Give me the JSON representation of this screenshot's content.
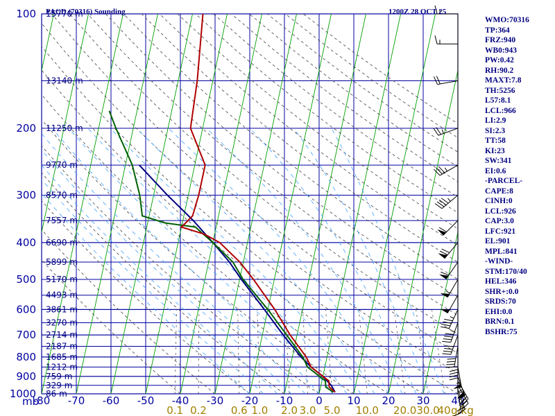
{
  "header": {
    "station": "PACD (70316) Sounding",
    "time": "1200Z 28 OCT 25"
  },
  "stats": [
    "WMO:70316",
    "TP:364",
    "FRZ:940",
    "WB0:943",
    "PW:0.42",
    "RH:90.2",
    "MAXT:7.8",
    "TH:5256",
    "L57:8.1",
    "LCL:966",
    "LI:2.9",
    "SI:2.3",
    "TT:58",
    "KI:23",
    "SW:341",
    "EI:0.6",
    "-PARCEL-",
    "CAPE:8",
    "CINH:0",
    "LCL:926",
    "CAP:3.0",
    "LFC:921",
    "EL:901",
    "MPL:841",
    "-WIND-",
    "STM:170/40",
    "HEL:346",
    "SHR+:0.0",
    "SRDS:70",
    "EHI:0.0",
    "BRN:0.1",
    "BSHR:75"
  ],
  "colors": {
    "grid": "#0000a0",
    "isotherm_skewed": "#00a000",
    "dry_adiabat": "#404040",
    "moist_adiabat": "#40a0ff",
    "temperature": "#b00000",
    "dewpoint": "#006000",
    "parcel": "#000080",
    "wind": "#000000",
    "mixing_label": "#a08000"
  },
  "chart_data": {
    "type": "skew-t",
    "title": "PACD (70316) Sounding",
    "ylabel": "mb",
    "pressure_levels": [
      100,
      200,
      300,
      400,
      500,
      600,
      700,
      800,
      900,
      1000
    ],
    "pressure_tick_labels": [
      "100",
      "200",
      "300",
      "400",
      "500",
      "600",
      "700",
      "800",
      "900",
      "1000"
    ],
    "temperature_ticks": [
      -80,
      -70,
      -60,
      -50,
      -40,
      -30,
      -20,
      -10,
      0,
      10,
      20,
      30,
      40
    ],
    "temperature_tick_labels": [
      "-80",
      "-70",
      "-60",
      "-50",
      "-40",
      "-30",
      "-20",
      "-10",
      "0",
      "10",
      "20",
      "30",
      "40"
    ],
    "mixing_ratio_labels": [
      "0.1",
      "0.2",
      "0.6",
      "1.0",
      "2.0",
      "3.0",
      "5.0",
      "10.0",
      "20.0",
      "30.0",
      "40"
    ],
    "mixing_ratio_unit": "g/kg",
    "mixing_ratio_values": [
      0.1,
      0.2,
      0.6,
      1.0,
      2.0,
      3.0,
      5.0,
      10.0,
      20.0,
      30.0,
      40
    ],
    "xlim": [
      -80,
      40
    ],
    "ylim": [
      1000,
      100
    ],
    "heights": [
      {
        "p": 100,
        "label": "15770 m"
      },
      {
        "p": 150,
        "label": "13140 m"
      },
      {
        "p": 200,
        "label": "11250 m"
      },
      {
        "p": 250,
        "label": "9770 m"
      },
      {
        "p": 300,
        "label": "8570 m"
      },
      {
        "p": 350,
        "label": "7557 m"
      },
      {
        "p": 400,
        "label": "6690 m"
      },
      {
        "p": 450,
        "label": "5899 m"
      },
      {
        "p": 500,
        "label": "5170 m"
      },
      {
        "p": 550,
        "label": "4493 m"
      },
      {
        "p": 600,
        "label": "3861 m"
      },
      {
        "p": 650,
        "label": "3270 m"
      },
      {
        "p": 700,
        "label": "2714 m"
      },
      {
        "p": 750,
        "label": "2187 m"
      },
      {
        "p": 800,
        "label": "1685 m"
      },
      {
        "p": 850,
        "label": "1212 m"
      },
      {
        "p": 900,
        "label": "759 m"
      },
      {
        "p": 950,
        "label": "329 m"
      },
      {
        "p": 1000,
        "label": "86 m"
      }
    ],
    "temperature_profile": [
      [
        990,
        4.5
      ],
      [
        960,
        2.5
      ],
      [
        925,
        2.0
      ],
      [
        850,
        -4.0
      ],
      [
        800,
        -6.0
      ],
      [
        700,
        -12.0
      ],
      [
        600,
        -18.0
      ],
      [
        500,
        -26.0
      ],
      [
        450,
        -31.0
      ],
      [
        400,
        -38.0
      ],
      [
        380,
        -43.0
      ],
      [
        364,
        -50.0
      ],
      [
        340,
        -47.5
      ],
      [
        300,
        -47.0
      ],
      [
        250,
        -47.0
      ],
      [
        200,
        -53.5
      ],
      [
        150,
        -54.5
      ],
      [
        100,
        -57.0
      ]
    ],
    "dewpoint_profile": [
      [
        990,
        4.0
      ],
      [
        960,
        1.5
      ],
      [
        925,
        1.0
      ],
      [
        850,
        -5.0
      ],
      [
        800,
        -7.0
      ],
      [
        700,
        -13.0
      ],
      [
        600,
        -20.0
      ],
      [
        500,
        -29.0
      ],
      [
        450,
        -33.0
      ],
      [
        400,
        -40.0
      ],
      [
        364,
        -46.0
      ],
      [
        355,
        -55.0
      ],
      [
        340,
        -62.0
      ],
      [
        300,
        -64.0
      ],
      [
        250,
        -68.0
      ],
      [
        200,
        -75.0
      ],
      [
        180,
        -78.0
      ]
    ],
    "parcel_profile": [
      [
        990,
        4.5
      ],
      [
        950,
        3.0
      ],
      [
        900,
        0.0
      ],
      [
        850,
        -4.0
      ],
      [
        800,
        -7.5
      ],
      [
        700,
        -14.0
      ],
      [
        600,
        -21.0
      ],
      [
        500,
        -29.5
      ],
      [
        450,
        -34.0
      ],
      [
        400,
        -40.0
      ],
      [
        350,
        -47.0
      ],
      [
        300,
        -56.0
      ],
      [
        250,
        -66.0
      ]
    ],
    "wind_barbs": [
      {
        "p": 990,
        "dir": 170,
        "spd": 10
      },
      {
        "p": 975,
        "dir": 160,
        "spd": 25
      },
      {
        "p": 950,
        "dir": 150,
        "spd": 35
      },
      {
        "p": 925,
        "dir": 150,
        "spd": 45
      },
      {
        "p": 900,
        "dir": 160,
        "spd": 55
      },
      {
        "p": 850,
        "dir": 170,
        "spd": 55
      },
      {
        "p": 800,
        "dir": 180,
        "spd": 45
      },
      {
        "p": 750,
        "dir": 190,
        "spd": 40
      },
      {
        "p": 700,
        "dir": 200,
        "spd": 40
      },
      {
        "p": 650,
        "dir": 200,
        "spd": 45
      },
      {
        "p": 600,
        "dir": 205,
        "spd": 45
      },
      {
        "p": 550,
        "dir": 210,
        "spd": 50
      },
      {
        "p": 500,
        "dir": 210,
        "spd": 55
      },
      {
        "p": 450,
        "dir": 215,
        "spd": 60
      },
      {
        "p": 400,
        "dir": 220,
        "spd": 70
      },
      {
        "p": 350,
        "dir": 225,
        "spd": 60
      },
      {
        "p": 300,
        "dir": 230,
        "spd": 45
      },
      {
        "p": 250,
        "dir": 240,
        "spd": 35
      },
      {
        "p": 200,
        "dir": 250,
        "spd": 25
      },
      {
        "p": 150,
        "dir": 260,
        "spd": 20
      },
      {
        "p": 120,
        "dir": 270,
        "spd": 15
      },
      {
        "p": 100,
        "dir": 270,
        "spd": 15
      }
    ],
    "grid": true,
    "legend": "none"
  }
}
